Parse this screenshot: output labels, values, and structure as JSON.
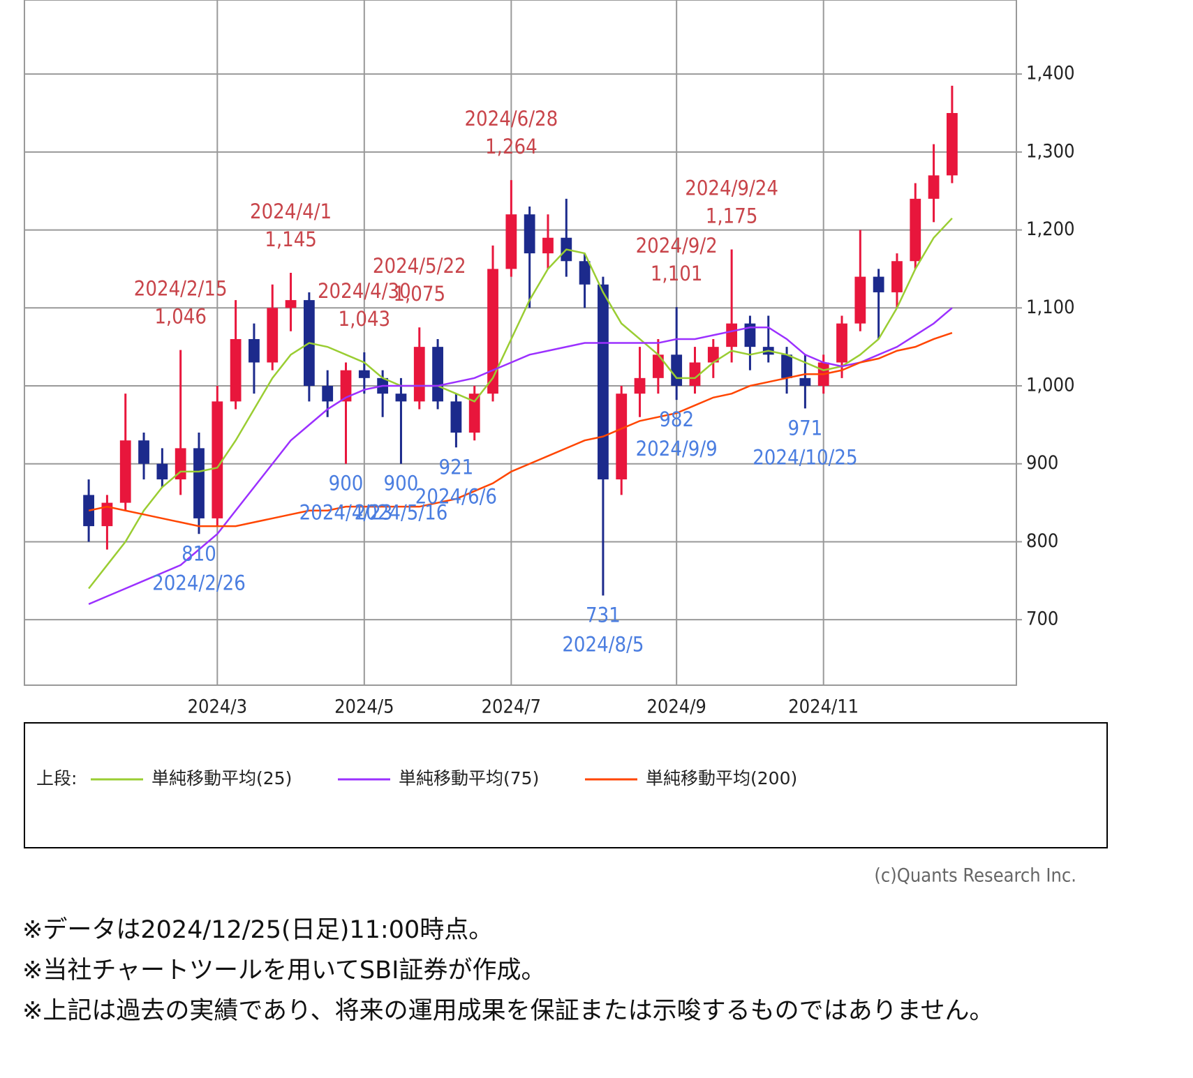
{
  "chart_data": {
    "type": "candlestick",
    "categories": [
      null,
      null,
      null,
      null,
      null,
      null,
      null,
      null,
      null,
      null,
      "2024/3",
      null,
      null,
      null,
      null,
      null,
      null,
      null,
      "2024/5",
      null,
      null,
      null,
      null,
      null,
      null,
      null,
      "2024/7",
      null,
      null,
      null,
      null,
      null,
      null,
      null,
      null,
      "2024/9",
      null,
      null,
      null,
      null,
      null,
      null,
      null,
      "2024/11",
      null,
      null,
      null,
      null,
      null,
      null,
      null,
      null,
      null,
      null
    ],
    "open": [
      null,
      null,
      null,
      860,
      820,
      850,
      930,
      900,
      880,
      920,
      830,
      980,
      1060,
      1030,
      1100,
      1110,
      1000,
      980,
      1020,
      1010,
      990,
      980,
      1050,
      980,
      940,
      990,
      1150,
      1220,
      1170,
      1190,
      1160,
      1130,
      880,
      990,
      1010,
      1040,
      1000,
      1030,
      1050,
      1080,
      1050,
      1040,
      1010,
      1000,
      1030,
      1080,
      1140,
      1120,
      1160,
      1240,
      1270,
      null,
      null,
      null
    ],
    "high": [
      null,
      null,
      null,
      880,
      860,
      990,
      940,
      920,
      1046,
      940,
      1000,
      1110,
      1080,
      1130,
      1145,
      1120,
      1020,
      1030,
      1043,
      1020,
      1010,
      1075,
      1060,
      990,
      1000,
      1180,
      1264,
      1230,
      1220,
      1240,
      1170,
      1140,
      1000,
      1050,
      1060,
      1101,
      1050,
      1060,
      1175,
      1090,
      1090,
      1050,
      1040,
      1040,
      1090,
      1200,
      1150,
      1170,
      1260,
      1310,
      1385,
      null,
      null,
      null
    ],
    "low": [
      null,
      null,
      null,
      800,
      790,
      840,
      880,
      870,
      860,
      810,
      820,
      970,
      990,
      1020,
      1070,
      980,
      960,
      900,
      990,
      960,
      900,
      970,
      970,
      921,
      930,
      980,
      1140,
      1100,
      1150,
      1140,
      1100,
      731,
      860,
      960,
      990,
      982,
      990,
      1010,
      1030,
      1020,
      1030,
      990,
      971,
      990,
      1010,
      1070,
      1060,
      1100,
      1150,
      1210,
      1260,
      null,
      null,
      null
    ],
    "close": [
      null,
      null,
      null,
      820,
      850,
      930,
      900,
      880,
      920,
      830,
      980,
      1060,
      1030,
      1100,
      1110,
      1000,
      980,
      1020,
      1010,
      990,
      980,
      1050,
      980,
      940,
      990,
      1150,
      1220,
      1170,
      1190,
      1160,
      1130,
      880,
      990,
      1010,
      1040,
      1000,
      1030,
      1050,
      1080,
      1050,
      1040,
      1010,
      1000,
      1030,
      1080,
      1140,
      1120,
      1160,
      1240,
      1270,
      1350,
      null,
      null,
      null
    ],
    "up_color": "#e8163c",
    "down_color": "#1c2a8c",
    "series": [
      {
        "name": "単純移動平均(25)",
        "color": "#9acd32",
        "values": [
          null,
          null,
          null,
          740,
          770,
          800,
          840,
          870,
          890,
          890,
          895,
          930,
          970,
          1010,
          1040,
          1055,
          1050,
          1040,
          1030,
          1010,
          1000,
          1000,
          1000,
          990,
          980,
          1010,
          1060,
          1110,
          1150,
          1175,
          1170,
          1120,
          1080,
          1060,
          1040,
          1010,
          1010,
          1030,
          1045,
          1040,
          1045,
          1040,
          1030,
          1020,
          1025,
          1040,
          1060,
          1100,
          1150,
          1190,
          1215,
          null,
          null,
          null
        ]
      },
      {
        "name": "単純移動平均(75)",
        "color": "#9b30ff",
        "values": [
          null,
          null,
          null,
          720,
          730,
          740,
          750,
          760,
          770,
          790,
          810,
          840,
          870,
          900,
          930,
          950,
          970,
          985,
          995,
          1000,
          1000,
          1000,
          1000,
          1005,
          1010,
          1020,
          1030,
          1040,
          1045,
          1050,
          1055,
          1055,
          1055,
          1055,
          1055,
          1060,
          1060,
          1065,
          1070,
          1075,
          1075,
          1060,
          1040,
          1030,
          1025,
          1030,
          1040,
          1050,
          1065,
          1080,
          1100,
          null,
          null,
          null
        ]
      },
      {
        "name": "単純移動平均(200)",
        "color": "#ff4500",
        "values": [
          null,
          null,
          null,
          840,
          845,
          840,
          835,
          830,
          825,
          820,
          820,
          820,
          825,
          830,
          835,
          840,
          840,
          845,
          845,
          845,
          845,
          845,
          850,
          855,
          865,
          875,
          890,
          900,
          910,
          920,
          930,
          935,
          945,
          955,
          960,
          965,
          975,
          985,
          990,
          1000,
          1005,
          1010,
          1015,
          1015,
          1020,
          1030,
          1035,
          1045,
          1050,
          1060,
          1068,
          null,
          null,
          null
        ]
      }
    ],
    "ylim": [
      616,
      1495
    ],
    "yticks": [
      700,
      800,
      900,
      {
        "value": 1000,
        "label": "1,000"
      },
      {
        "value": 1100,
        "label": "1,100"
      },
      {
        "value": 1200,
        "label": "1,200"
      },
      {
        "value": 1300,
        "label": "1,300"
      },
      {
        "value": 1400,
        "label": "1,400"
      }
    ],
    "grid": true,
    "annotations": [
      {
        "kind": "high",
        "date": "2024/2/15",
        "value": 1046,
        "label": "1,046",
        "color": "#c8444a"
      },
      {
        "kind": "high",
        "date": "2024/4/1",
        "value": 1145,
        "label": "1,145",
        "color": "#c8444a"
      },
      {
        "kind": "high",
        "date": "2024/4/30",
        "value": 1043,
        "label": "1,043",
        "color": "#c8444a"
      },
      {
        "kind": "high",
        "date": "2024/5/22",
        "value": 1075,
        "label": "1,075",
        "color": "#c8444a"
      },
      {
        "kind": "high",
        "date": "2024/6/28",
        "value": 1264,
        "label": "1,264",
        "color": "#c8444a"
      },
      {
        "kind": "high",
        "date": "2024/9/2",
        "value": 1101,
        "label": "1,101",
        "color": "#c8444a"
      },
      {
        "kind": "high",
        "date": "2024/9/24",
        "value": 1175,
        "label": "1,175",
        "color": "#c8444a"
      },
      {
        "kind": "low",
        "date": "2024/2/26",
        "value": 810,
        "color": "#4a7de0"
      },
      {
        "kind": "low",
        "date": "2024/4/23",
        "value": 900,
        "color": "#4a7de0"
      },
      {
        "kind": "low",
        "date": "2024/5/16",
        "value": 900,
        "color": "#4a7de0"
      },
      {
        "kind": "low",
        "date": "2024/6/6",
        "value": 921,
        "color": "#4a7de0"
      },
      {
        "kind": "low",
        "date": "2024/8/5",
        "value": 731,
        "color": "#4a7de0"
      },
      {
        "kind": "low",
        "date": "2024/9/9",
        "value": 982,
        "color": "#4a7de0"
      },
      {
        "kind": "low",
        "date": "2024/10/25",
        "value": 971,
        "color": "#4a7de0"
      }
    ],
    "legend_prefix": "上段:"
  },
  "copyright": "(c)Quants Research Inc.",
  "notes": [
    "※データは2024/12/25(日足)11:00時点。",
    "※当社チャートツールを用いてSBI証券が作成。",
    "※上記は過去の実績であり、将来の運用成果を保証または示唆するものではありません。"
  ]
}
